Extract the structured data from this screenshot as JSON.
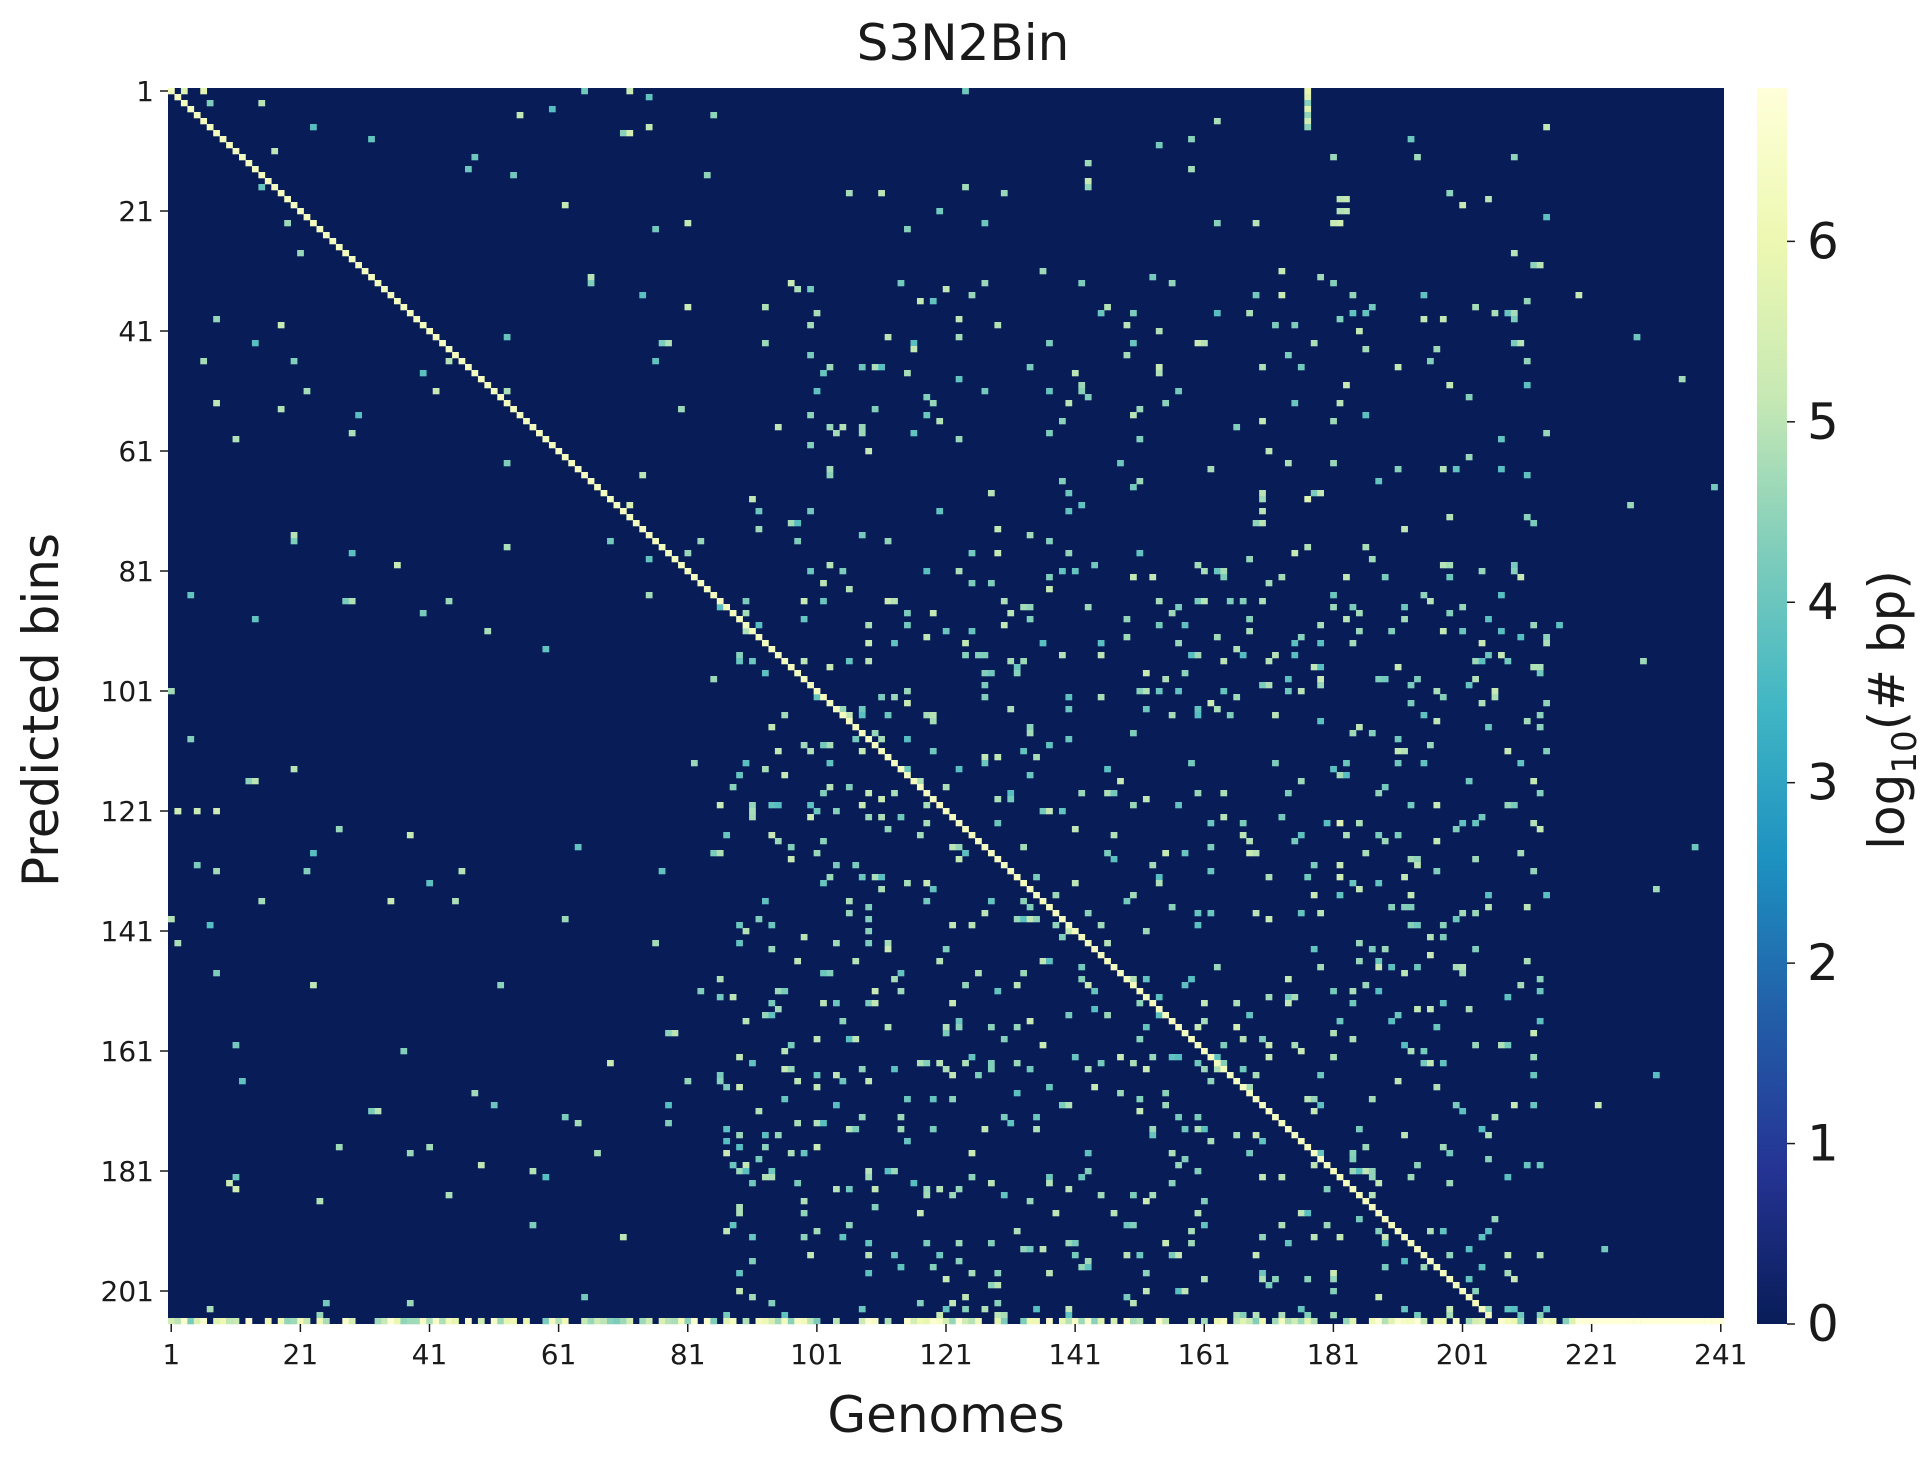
{
  "chart_data": {
    "type": "heatmap",
    "title": "S3N2Bin",
    "xlabel": "Genomes",
    "ylabel": "Predicted bins",
    "x_count": 241,
    "y_count": 206,
    "x_tick_labels": [
      "1",
      "21",
      "41",
      "61",
      "81",
      "101",
      "121",
      "141",
      "161",
      "181",
      "201",
      "221",
      "241"
    ],
    "y_tick_labels": [
      "1",
      "21",
      "41",
      "61",
      "81",
      "101",
      "121",
      "141",
      "161",
      "181",
      "201"
    ],
    "colorbar": {
      "label": "log",
      "label_sub": "10",
      "label_rest": "(# bp)",
      "range": [
        0,
        6.85
      ],
      "ticks": [
        "0",
        "1",
        "2",
        "3",
        "4",
        "5",
        "6"
      ],
      "colormap": "YlGnBu",
      "stops": [
        "#081d58",
        "#253494",
        "#225ea8",
        "#1d91c0",
        "#41b6c4",
        "#7fcdbb",
        "#c7e9b4",
        "#edf8b1",
        "#ffffd9"
      ]
    },
    "diagonal_value": 6.3,
    "sample_offdiag_cells": [
      {
        "bin": 1,
        "genome": 3,
        "value": 5.6
      },
      {
        "bin": 1,
        "genome": 6,
        "value": 5.8
      },
      {
        "bin": 1,
        "genome": 72,
        "value": 5.2
      },
      {
        "bin": 1,
        "genome": 177,
        "value": 5.9
      },
      {
        "bin": 2,
        "genome": 177,
        "value": 5.6
      },
      {
        "bin": 3,
        "genome": 177,
        "value": 4.4
      },
      {
        "bin": 4,
        "genome": 177,
        "value": 5.6
      },
      {
        "bin": 5,
        "genome": 177,
        "value": 4.5
      },
      {
        "bin": 6,
        "genome": 177,
        "value": 5.3
      },
      {
        "bin": 7,
        "genome": 177,
        "value": 4.4
      },
      {
        "bin": 8,
        "genome": 71,
        "value": 4.4
      },
      {
        "bin": 8,
        "genome": 72,
        "value": 5.4
      },
      {
        "bin": 18,
        "genome": 111,
        "value": 5.0
      },
      {
        "bin": 18,
        "genome": 130,
        "value": 4.6
      },
      {
        "bin": 19,
        "genome": 182,
        "value": 5.0
      },
      {
        "bin": 19,
        "genome": 183,
        "value": 5.1
      },
      {
        "bin": 21,
        "genome": 182,
        "value": 4.9
      },
      {
        "bin": 21,
        "genome": 183,
        "value": 5.0
      },
      {
        "bin": 23,
        "genome": 181,
        "value": 5.2
      },
      {
        "bin": 23,
        "genome": 182,
        "value": 5.3
      },
      {
        "bin": 70,
        "genome": 72,
        "value": 5.5
      },
      {
        "bin": 69,
        "genome": 177,
        "value": 5.6
      },
      {
        "bin": 121,
        "genome": 2,
        "value": 5.3
      },
      {
        "bin": 121,
        "genome": 5,
        "value": 5.2
      },
      {
        "bin": 121,
        "genome": 8,
        "value": 5.3
      },
      {
        "bin": 123,
        "genome": 182,
        "value": 5.6
      },
      {
        "bin": 132,
        "genome": 182,
        "value": 5.3
      },
      {
        "bin": 183,
        "genome": 10,
        "value": 5.2
      },
      {
        "bin": 184,
        "genome": 11,
        "value": 5.4
      },
      {
        "bin": 192,
        "genome": 182,
        "value": 5.1
      },
      {
        "bin": 142,
        "genome": 196,
        "value": 4.9
      },
      {
        "bin": 148,
        "genome": 192,
        "value": 5.0
      },
      {
        "bin": 157,
        "genome": 166,
        "value": 5.4
      }
    ],
    "bottom_row_note_value": 6.8,
    "grid": false
  }
}
